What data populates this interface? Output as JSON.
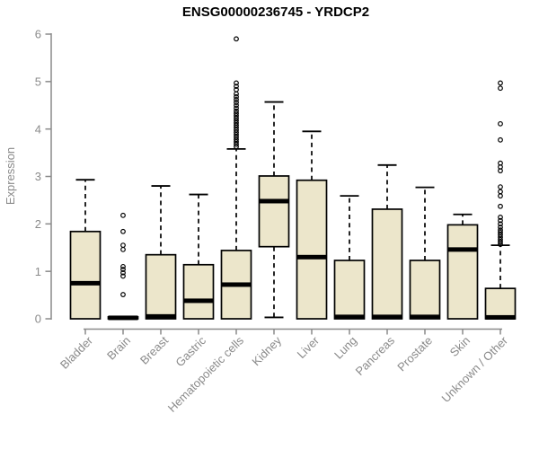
{
  "chart_data": {
    "type": "boxplot",
    "title": "ENSG00000236745 - YRDCP2",
    "ylabel": "Expression",
    "xlabel": "",
    "ylim": [
      0,
      6
    ],
    "yticks": [
      "0",
      "1",
      "2",
      "3",
      "4",
      "5",
      "6"
    ],
    "grid": false,
    "legend": "none",
    "categories": [
      "Bladder",
      "Brain",
      "Breast",
      "Gastric",
      "Hematopoietic cells",
      "Kidney",
      "Liver",
      "Lung",
      "Pancreas",
      "Prostate",
      "Skin",
      "Unknown / Other"
    ],
    "series": [
      {
        "category": "Bladder",
        "low": 0,
        "q1": 0,
        "median": 0.75,
        "q3": 1.84,
        "high": 2.93,
        "outliers": []
      },
      {
        "category": "Brain",
        "low": 0,
        "q1": 0,
        "median": 0.02,
        "q3": 0.04,
        "high": 0.05,
        "outliers": [
          0.51,
          0.9,
          0.97,
          1.04,
          1.1,
          1.46,
          1.55,
          1.84,
          2.18
        ]
      },
      {
        "category": "Breast",
        "low": 0,
        "q1": 0,
        "median": 0.05,
        "q3": 1.35,
        "high": 2.8,
        "outliers": []
      },
      {
        "category": "Gastric",
        "low": 0,
        "q1": 0,
        "median": 0.38,
        "q3": 1.14,
        "high": 2.62,
        "outliers": []
      },
      {
        "category": "Hematopoietic cells",
        "low": 0,
        "q1": 0,
        "median": 0.72,
        "q3": 1.44,
        "high": 3.58,
        "outliers": [
          3.63,
          3.68,
          3.73,
          3.78,
          3.83,
          3.88,
          3.93,
          3.98,
          4.03,
          4.08,
          4.13,
          4.18,
          4.23,
          4.28,
          4.33,
          4.38,
          4.44,
          4.5,
          4.56,
          4.62,
          4.68,
          4.74,
          4.83,
          4.9,
          4.97,
          5.9
        ]
      },
      {
        "category": "Kidney",
        "low": 0.03,
        "q1": 1.52,
        "median": 2.48,
        "q3": 3.01,
        "high": 4.57,
        "outliers": []
      },
      {
        "category": "Liver",
        "low": 0,
        "q1": 0,
        "median": 1.3,
        "q3": 2.92,
        "high": 3.95,
        "outliers": []
      },
      {
        "category": "Lung",
        "low": 0,
        "q1": 0,
        "median": 0.04,
        "q3": 1.23,
        "high": 2.59,
        "outliers": []
      },
      {
        "category": "Pancreas",
        "low": 0,
        "q1": 0,
        "median": 0.04,
        "q3": 2.31,
        "high": 3.24,
        "outliers": []
      },
      {
        "category": "Prostate",
        "low": 0,
        "q1": 0,
        "median": 0.04,
        "q3": 1.23,
        "high": 2.77,
        "outliers": []
      },
      {
        "category": "Skin",
        "low": 0,
        "q1": 0,
        "median": 1.46,
        "q3": 1.98,
        "high": 2.2,
        "outliers": []
      },
      {
        "category": "Unknown / Other",
        "low": 0,
        "q1": 0,
        "median": 0.03,
        "q3": 0.64,
        "high": 1.55,
        "outliers": [
          1.57,
          1.62,
          1.67,
          1.72,
          1.77,
          1.82,
          1.87,
          1.93,
          2.0,
          2.07,
          2.14,
          2.37,
          2.59,
          2.68,
          2.78,
          3.12,
          3.2,
          3.28,
          3.77,
          4.11,
          4.86,
          4.97
        ]
      }
    ],
    "colors": {
      "box_fill": "#ece6cb",
      "box_stroke": "#000000",
      "median": "#000000",
      "whisker": "#000000",
      "axis": "#8a8a8a",
      "title": "#000000",
      "background": "#ffffff"
    }
  }
}
